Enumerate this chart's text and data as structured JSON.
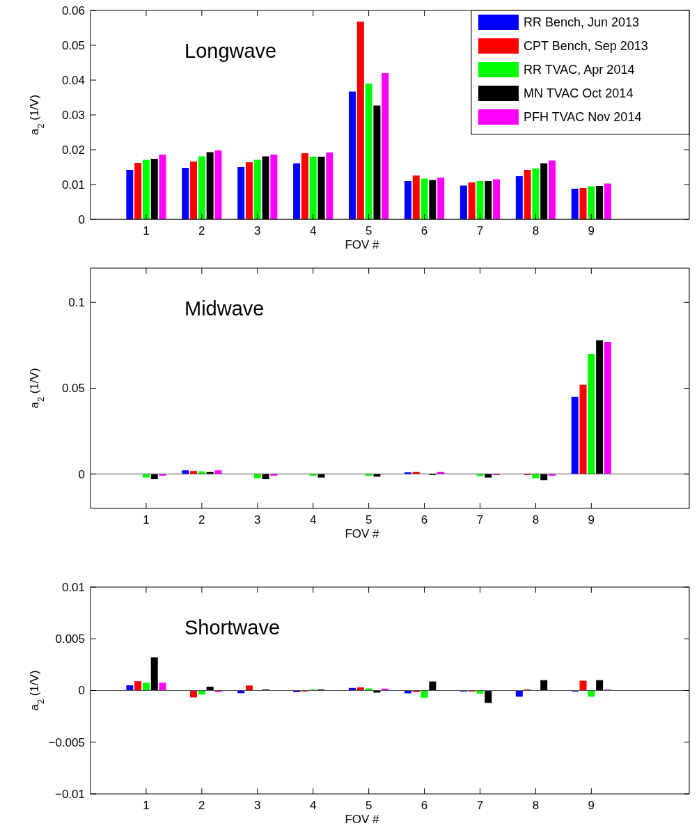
{
  "chart_data": [
    {
      "type": "bar",
      "annotations": [
        "Longwave"
      ],
      "xlabel": "FOV #",
      "ylabel": "a$_{2}$ (1/V)",
      "categories": [
        "1",
        "2",
        "3",
        "4",
        "5",
        "6",
        "7",
        "8",
        "9"
      ],
      "ylim": [
        0,
        0.06
      ],
      "yticks": [
        0,
        0.01,
        0.02,
        0.03,
        0.04,
        0.05,
        0.06
      ],
      "legend": "top right",
      "series": [
        {
          "name": "RR Bench, Jun 2013",
          "color": "#0000ff",
          "values": [
            0.0142,
            0.0148,
            0.015,
            0.0161,
            0.0367,
            0.011,
            0.0097,
            0.0124,
            0.0088
          ]
        },
        {
          "name": "CPT Bench, Sep 2013",
          "color": "#ff0000",
          "values": [
            0.0162,
            0.0166,
            0.0164,
            0.019,
            0.0568,
            0.0126,
            0.0106,
            0.0142,
            0.009
          ]
        },
        {
          "name": "RR TVAC, Apr 2014",
          "color": "#00ff00",
          "values": [
            0.0171,
            0.0181,
            0.0171,
            0.018,
            0.039,
            0.0117,
            0.011,
            0.0146,
            0.0095
          ]
        },
        {
          "name": "MN TVAC Oct 2014",
          "color": "#000000",
          "values": [
            0.0174,
            0.0193,
            0.0181,
            0.018,
            0.0327,
            0.0113,
            0.011,
            0.0161,
            0.0096
          ]
        },
        {
          "name": "PFH TVAC Nov 2014",
          "color": "#ff00ff",
          "values": [
            0.0186,
            0.0198,
            0.0186,
            0.0192,
            0.042,
            0.012,
            0.0115,
            0.0169,
            0.0103
          ]
        }
      ]
    },
    {
      "type": "bar",
      "annotations": [
        "Midwave"
      ],
      "xlabel": "FOV #",
      "ylabel": "a$_{2}$ (1/V)",
      "categories": [
        "1",
        "2",
        "3",
        "4",
        "5",
        "6",
        "7",
        "8",
        "9"
      ],
      "ylim": [
        -0.02,
        0.12
      ],
      "yticks": [
        0,
        0.05,
        0.1
      ],
      "series": [
        {
          "color": "#0000ff",
          "values": [
            0,
            0.0022,
            0,
            0,
            0,
            0.001,
            0,
            0,
            0.045
          ]
        },
        {
          "color": "#ff0000",
          "values": [
            0,
            0.0018,
            0,
            0,
            0,
            0.0012,
            0,
            -0.0005,
            0.052
          ]
        },
        {
          "color": "#00ff00",
          "values": [
            -0.002,
            0.0016,
            -0.0025,
            -0.001,
            -0.001,
            0,
            -0.0012,
            -0.0025,
            0.07
          ]
        },
        {
          "color": "#000000",
          "values": [
            -0.003,
            0.0012,
            -0.003,
            -0.002,
            -0.0015,
            -0.0005,
            -0.002,
            -0.0035,
            0.078
          ]
        },
        {
          "color": "#ff00ff",
          "values": [
            -0.001,
            0.0022,
            -0.001,
            0,
            0,
            0.0012,
            -0.0005,
            -0.001,
            0.077
          ]
        }
      ]
    },
    {
      "type": "bar",
      "annotations": [
        "Shortwave"
      ],
      "xlabel": "FOV #",
      "ylabel": "a$_{2}$ (1/V)",
      "categories": [
        "1",
        "2",
        "3",
        "4",
        "5",
        "6",
        "7",
        "8",
        "9"
      ],
      "ylim": [
        -0.01,
        0.01
      ],
      "yticks": [
        {
          "value": -0.01,
          "label": "−0.01"
        },
        {
          "value": -0.005,
          "label": "−0.005"
        },
        0,
        0.005,
        0.01
      ],
      "series": [
        {
          "color": "#0000ff",
          "values": [
            0.0005,
            0,
            -0.00026,
            -0.00015,
            0.00025,
            -0.00028,
            -0.0001,
            -0.0006,
            -0.0001
          ]
        },
        {
          "color": "#ff0000",
          "values": [
            0.0009,
            -0.00067,
            0.00048,
            -0.0001,
            0.0003,
            -0.00015,
            -0.0001,
            0.0001,
            0.00095
          ]
        },
        {
          "color": "#00ff00",
          "values": [
            0.00075,
            -0.0004,
            0,
            0.0001,
            0.0002,
            -0.0007,
            -0.0003,
            0,
            -0.0006
          ]
        },
        {
          "color": "#000000",
          "values": [
            0.0032,
            0.00037,
            0.0001,
            0.0001,
            -0.0002,
            0.00087,
            -0.0012,
            0.001,
            0.001
          ]
        },
        {
          "color": "#ff00ff",
          "values": [
            0.00075,
            -0.00015,
            0,
            0,
            0.00018,
            0,
            0,
            0,
            0.0001
          ]
        }
      ]
    }
  ]
}
